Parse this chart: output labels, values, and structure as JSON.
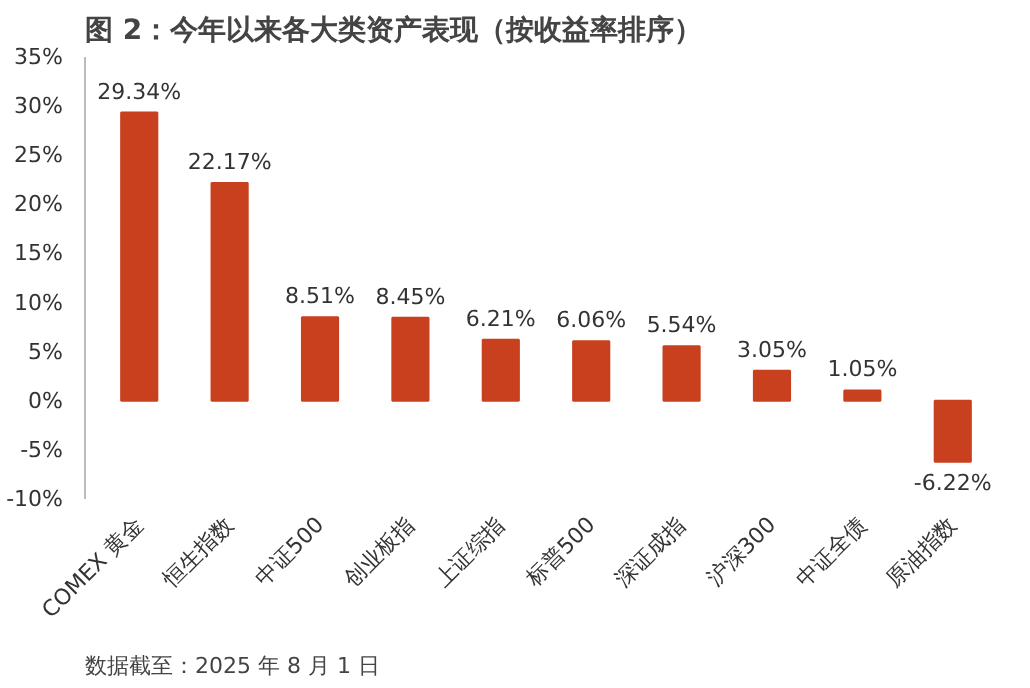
{
  "chart_data": {
    "type": "bar",
    "title": "图 2：今年以来各大类资产表现（按收益率排序）",
    "categories": [
      "COMEX 黄金",
      "恒生指数",
      "中证500",
      "创业板指",
      "上证综指",
      "标普500",
      "深证成指",
      "沪深300",
      "中证全债",
      "原油指数"
    ],
    "values": [
      29.34,
      22.17,
      8.51,
      8.45,
      6.21,
      6.06,
      5.54,
      3.05,
      1.05,
      -6.22
    ],
    "value_labels": [
      "29.34%",
      "22.17%",
      "8.51%",
      "8.45%",
      "6.21%",
      "6.06%",
      "5.54%",
      "3.05%",
      "1.05%",
      "-6.22%"
    ],
    "color": "#c8401e",
    "ylim": [
      -10,
      35
    ],
    "yticks": [
      {
        "value": -10,
        "label": "-10%"
      },
      {
        "value": -5,
        "label": "-5%"
      },
      {
        "value": 0,
        "label": "0%"
      },
      {
        "value": 5,
        "label": "5%"
      },
      {
        "value": 10,
        "label": "10%"
      },
      {
        "value": 15,
        "label": "15%"
      },
      {
        "value": 20,
        "label": "20%"
      },
      {
        "value": 25,
        "label": "25%"
      },
      {
        "value": 30,
        "label": "30%"
      },
      {
        "value": 35,
        "label": "35%"
      }
    ],
    "grid": false,
    "annotations": [
      "数据截至：2025 年 8 月 1 日"
    ]
  }
}
